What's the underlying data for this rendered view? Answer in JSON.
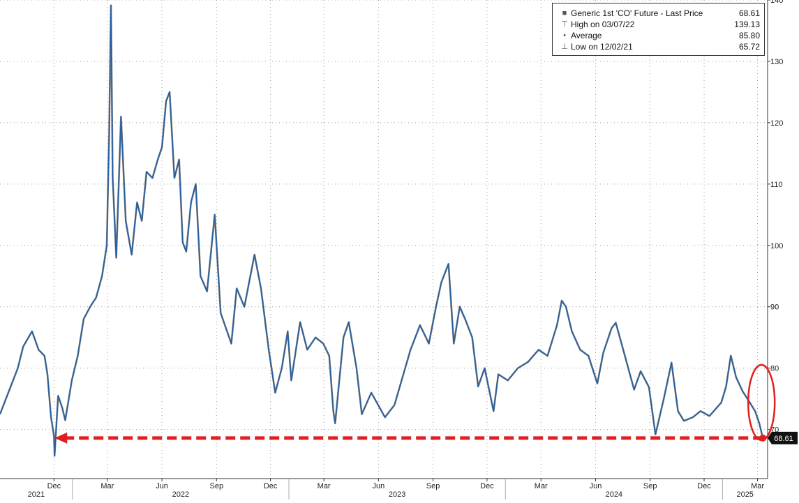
{
  "chart_data": {
    "type": "line",
    "title": "",
    "xlabel": "",
    "ylabel": "",
    "ylim": [
      62,
      140
    ],
    "y_ticks": [
      70,
      80,
      90,
      100,
      110,
      120,
      130,
      140
    ],
    "y_axis_side": "right",
    "grid": true,
    "legend_placement": "top-right",
    "x_month_ticks": [
      {
        "date": "2021-12",
        "label": "Dec"
      },
      {
        "date": "2022-03",
        "label": "Mar"
      },
      {
        "date": "2022-06",
        "label": "Jun"
      },
      {
        "date": "2022-09",
        "label": "Sep"
      },
      {
        "date": "2022-12",
        "label": "Dec"
      },
      {
        "date": "2023-03",
        "label": "Mar"
      },
      {
        "date": "2023-06",
        "label": "Jun"
      },
      {
        "date": "2023-09",
        "label": "Sep"
      },
      {
        "date": "2023-12",
        "label": "Dec"
      },
      {
        "date": "2024-03",
        "label": "Mar"
      },
      {
        "date": "2024-06",
        "label": "Jun"
      },
      {
        "date": "2024-09",
        "label": "Sep"
      },
      {
        "date": "2024-12",
        "label": "Dec"
      },
      {
        "date": "2025-03",
        "label": "Mar"
      }
    ],
    "x_year_labels": [
      "2021",
      "2022",
      "2023",
      "2024",
      "2025"
    ],
    "series": [
      {
        "name": "Generic 1st 'CO' Future - Last Price",
        "color": "#1f5fa8",
        "points": [
          [
            "2021-09-01",
            72.5
          ],
          [
            "2021-09-15",
            76
          ],
          [
            "2021-10-01",
            80
          ],
          [
            "2021-10-10",
            83.5
          ],
          [
            "2021-10-25",
            86
          ],
          [
            "2021-11-05",
            83
          ],
          [
            "2021-11-15",
            82
          ],
          [
            "2021-11-20",
            79
          ],
          [
            "2021-11-26",
            72
          ],
          [
            "2021-12-01",
            68.9
          ],
          [
            "2021-12-02",
            65.72
          ],
          [
            "2021-12-08",
            75.5
          ],
          [
            "2021-12-15",
            73.5
          ],
          [
            "2021-12-20",
            71.5
          ],
          [
            "2021-12-31",
            78
          ],
          [
            "2022-01-10",
            82
          ],
          [
            "2022-01-20",
            88
          ],
          [
            "2022-01-31",
            90
          ],
          [
            "2022-02-10",
            91.5
          ],
          [
            "2022-02-20",
            95
          ],
          [
            "2022-02-28",
            100
          ],
          [
            "2022-03-04",
            118
          ],
          [
            "2022-03-07",
            139.13
          ],
          [
            "2022-03-10",
            111
          ],
          [
            "2022-03-16",
            98
          ],
          [
            "2022-03-24",
            121
          ],
          [
            "2022-04-01",
            104
          ],
          [
            "2022-04-11",
            98.5
          ],
          [
            "2022-04-20",
            107
          ],
          [
            "2022-04-28",
            104
          ],
          [
            "2022-05-06",
            112
          ],
          [
            "2022-05-16",
            111
          ],
          [
            "2022-05-25",
            114
          ],
          [
            "2022-06-01",
            116
          ],
          [
            "2022-06-08",
            123.5
          ],
          [
            "2022-06-14",
            125
          ],
          [
            "2022-06-22",
            111
          ],
          [
            "2022-06-30",
            114
          ],
          [
            "2022-07-06",
            100.5
          ],
          [
            "2022-07-12",
            99
          ],
          [
            "2022-07-20",
            107
          ],
          [
            "2022-07-28",
            110
          ],
          [
            "2022-08-05",
            95
          ],
          [
            "2022-08-16",
            92.5
          ],
          [
            "2022-08-29",
            105
          ],
          [
            "2022-09-08",
            89
          ],
          [
            "2022-09-26",
            84
          ],
          [
            "2022-10-05",
            93
          ],
          [
            "2022-10-18",
            90
          ],
          [
            "2022-11-04",
            98.5
          ],
          [
            "2022-11-15",
            93
          ],
          [
            "2022-11-28",
            83
          ],
          [
            "2022-12-09",
            76
          ],
          [
            "2022-12-20",
            80
          ],
          [
            "2022-12-30",
            86
          ],
          [
            "2023-01-05",
            78
          ],
          [
            "2023-01-20",
            87.5
          ],
          [
            "2023-02-01",
            83
          ],
          [
            "2023-02-15",
            85
          ],
          [
            "2023-02-28",
            84
          ],
          [
            "2023-03-10",
            82
          ],
          [
            "2023-03-17",
            73
          ],
          [
            "2023-03-20",
            71
          ],
          [
            "2023-04-03",
            85
          ],
          [
            "2023-04-12",
            87.5
          ],
          [
            "2023-04-25",
            80
          ],
          [
            "2023-05-04",
            72.5
          ],
          [
            "2023-05-20",
            76
          ],
          [
            "2023-06-12",
            72
          ],
          [
            "2023-06-28",
            74
          ],
          [
            "2023-07-10",
            78
          ],
          [
            "2023-07-25",
            83
          ],
          [
            "2023-08-10",
            87
          ],
          [
            "2023-08-25",
            84
          ],
          [
            "2023-09-06",
            90
          ],
          [
            "2023-09-15",
            94
          ],
          [
            "2023-09-27",
            97
          ],
          [
            "2023-10-06",
            84
          ],
          [
            "2023-10-16",
            90
          ],
          [
            "2023-10-25",
            88
          ],
          [
            "2023-11-06",
            85
          ],
          [
            "2023-11-16",
            77
          ],
          [
            "2023-11-27",
            80
          ],
          [
            "2023-12-12",
            73
          ],
          [
            "2023-12-20",
            79
          ],
          [
            "2024-01-05",
            78
          ],
          [
            "2024-01-22",
            80
          ],
          [
            "2024-02-08",
            81
          ],
          [
            "2024-02-26",
            83
          ],
          [
            "2024-03-12",
            82
          ],
          [
            "2024-03-28",
            87
          ],
          [
            "2024-04-05",
            91
          ],
          [
            "2024-04-12",
            90
          ],
          [
            "2024-04-22",
            86
          ],
          [
            "2024-05-06",
            83
          ],
          [
            "2024-05-20",
            82
          ],
          [
            "2024-06-04",
            77.5
          ],
          [
            "2024-06-14",
            82.5
          ],
          [
            "2024-06-28",
            86.5
          ],
          [
            "2024-07-05",
            87.4
          ],
          [
            "2024-07-19",
            82.5
          ],
          [
            "2024-08-05",
            76.5
          ],
          [
            "2024-08-16",
            79.5
          ],
          [
            "2024-08-30",
            76.9
          ],
          [
            "2024-09-10",
            69.2
          ],
          [
            "2024-09-24",
            75
          ],
          [
            "2024-10-07",
            80.9
          ],
          [
            "2024-10-18",
            73
          ],
          [
            "2024-10-28",
            71.4
          ],
          [
            "2024-11-12",
            72
          ],
          [
            "2024-11-25",
            73
          ],
          [
            "2024-12-10",
            72.2
          ],
          [
            "2024-12-30",
            74.4
          ],
          [
            "2025-01-07",
            77
          ],
          [
            "2025-01-15",
            82.03
          ],
          [
            "2025-01-24",
            78.5
          ],
          [
            "2025-02-04",
            76.2
          ],
          [
            "2025-02-14",
            74.7
          ],
          [
            "2025-02-25",
            73
          ],
          [
            "2025-03-04",
            71
          ],
          [
            "2025-03-10",
            68.61
          ]
        ]
      }
    ]
  },
  "legend": {
    "title": "Generic 1st 'CO' Future - Last Price",
    "title_value": "68.61",
    "high_label": "High on 03/07/22",
    "high_value": "139.13",
    "avg_label": "Average",
    "avg_value": "85.80",
    "low_label": "Low on 12/02/21",
    "low_value": "65.72"
  },
  "last_price_tag": "68.61",
  "annotation": {
    "color": "#e02020",
    "ref_value": 68.61,
    "from_date": "2025-03-10",
    "to_date": "2021-12-02"
  }
}
